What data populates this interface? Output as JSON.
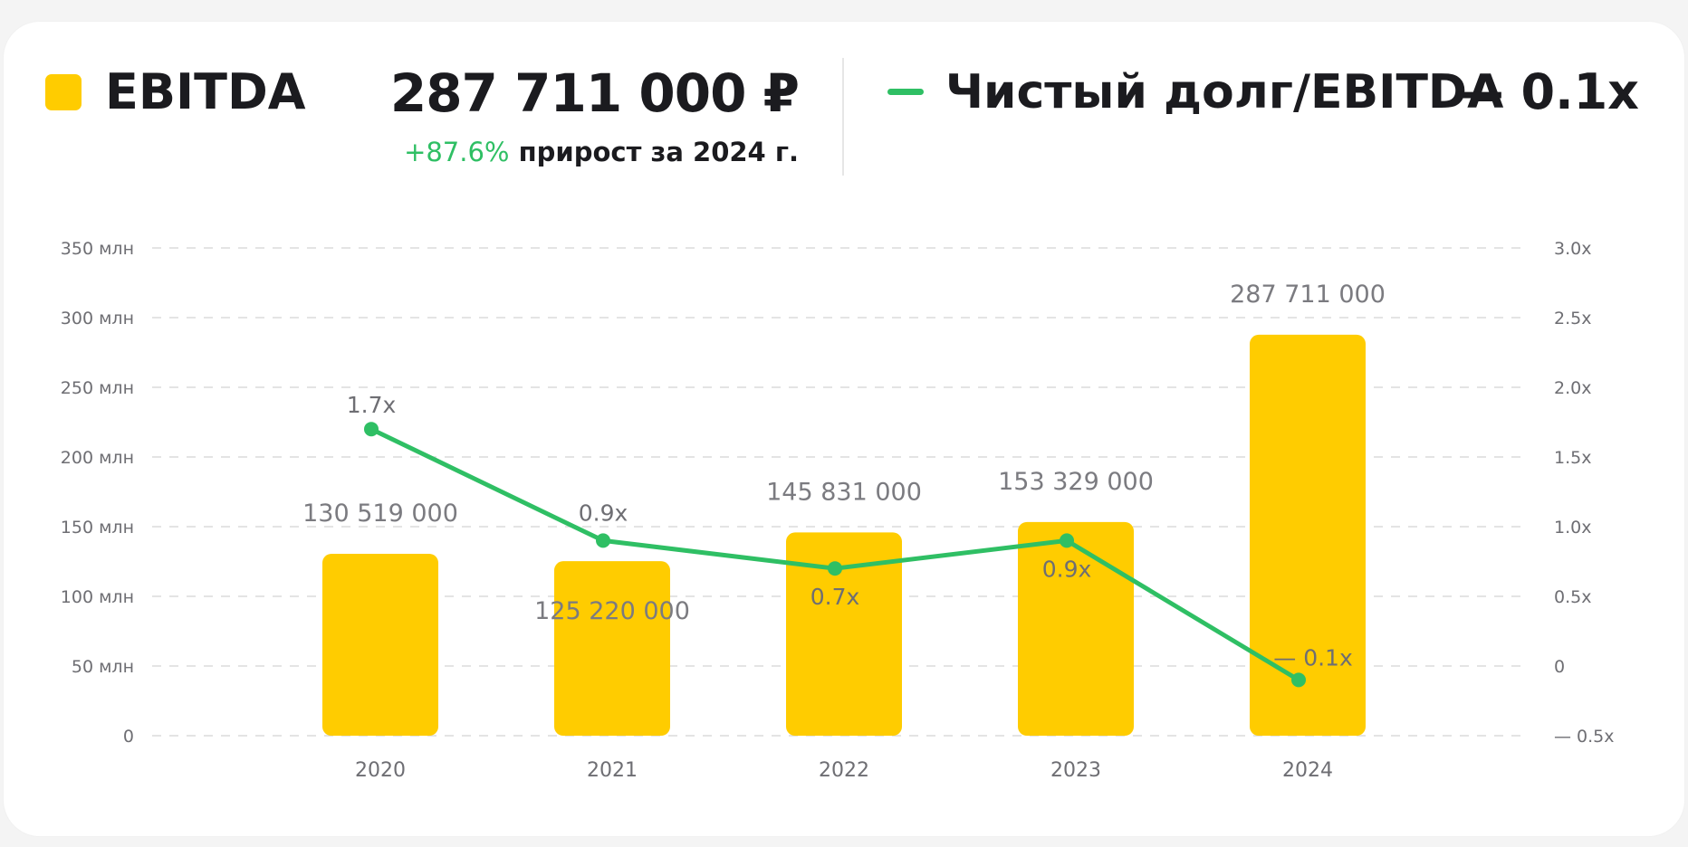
{
  "header": {
    "bar_legend_label": "EBITDA",
    "headline_value": "287 711 000 ₽",
    "growth_value": "+87.6%",
    "growth_caption": "прирост за 2024 г.",
    "line_legend_label": "Чистый долг/EBITDA",
    "line_legend_value": "— 0.1x"
  },
  "colors": {
    "bar": "#FFCC00",
    "line": "#2FBF64",
    "growth": "#2FBF64",
    "text": "#1B1B1F",
    "muted": "#6E6E73",
    "grid": "#DCDCDC"
  },
  "chart_data": {
    "type": "bar+line",
    "categories": [
      "2020",
      "2021",
      "2022",
      "2023",
      "2024"
    ],
    "series": [
      {
        "name": "EBITDA",
        "type": "bar",
        "axis": "left",
        "values": [
          130519000,
          125220000,
          145831000,
          153329000,
          287711000
        ],
        "labels": [
          "130 519 000",
          "125 220 000",
          "145 831 000",
          "153 329 000",
          "287 711 000"
        ]
      },
      {
        "name": "Чистый долг/EBITDA",
        "type": "line",
        "axis": "right",
        "values": [
          1.7,
          0.9,
          0.7,
          0.9,
          -0.1
        ],
        "labels": [
          "1.7x",
          "0.9x",
          "0.7x",
          "0.9x",
          "— 0.1x"
        ]
      }
    ],
    "y_left": {
      "ylim": [
        0,
        350000000
      ],
      "ticks": [
        0,
        50000000,
        100000000,
        150000000,
        200000000,
        250000000,
        300000000,
        350000000
      ],
      "tick_labels": [
        "0",
        "50 млн",
        "100 млн",
        "150 млн",
        "200 млн",
        "250 млн",
        "300 млн",
        "350 млн"
      ]
    },
    "y_right": {
      "ylim": [
        -0.5,
        3.0
      ],
      "ticks": [
        -0.5,
        0,
        0.5,
        1.0,
        1.5,
        2.0,
        2.5,
        3.0
      ],
      "tick_labels": [
        "— 0.5x",
        "0",
        "0.5x",
        "1.0x",
        "1.5x",
        "2.0x",
        "2.5x",
        "3.0x"
      ]
    },
    "grid": true
  }
}
